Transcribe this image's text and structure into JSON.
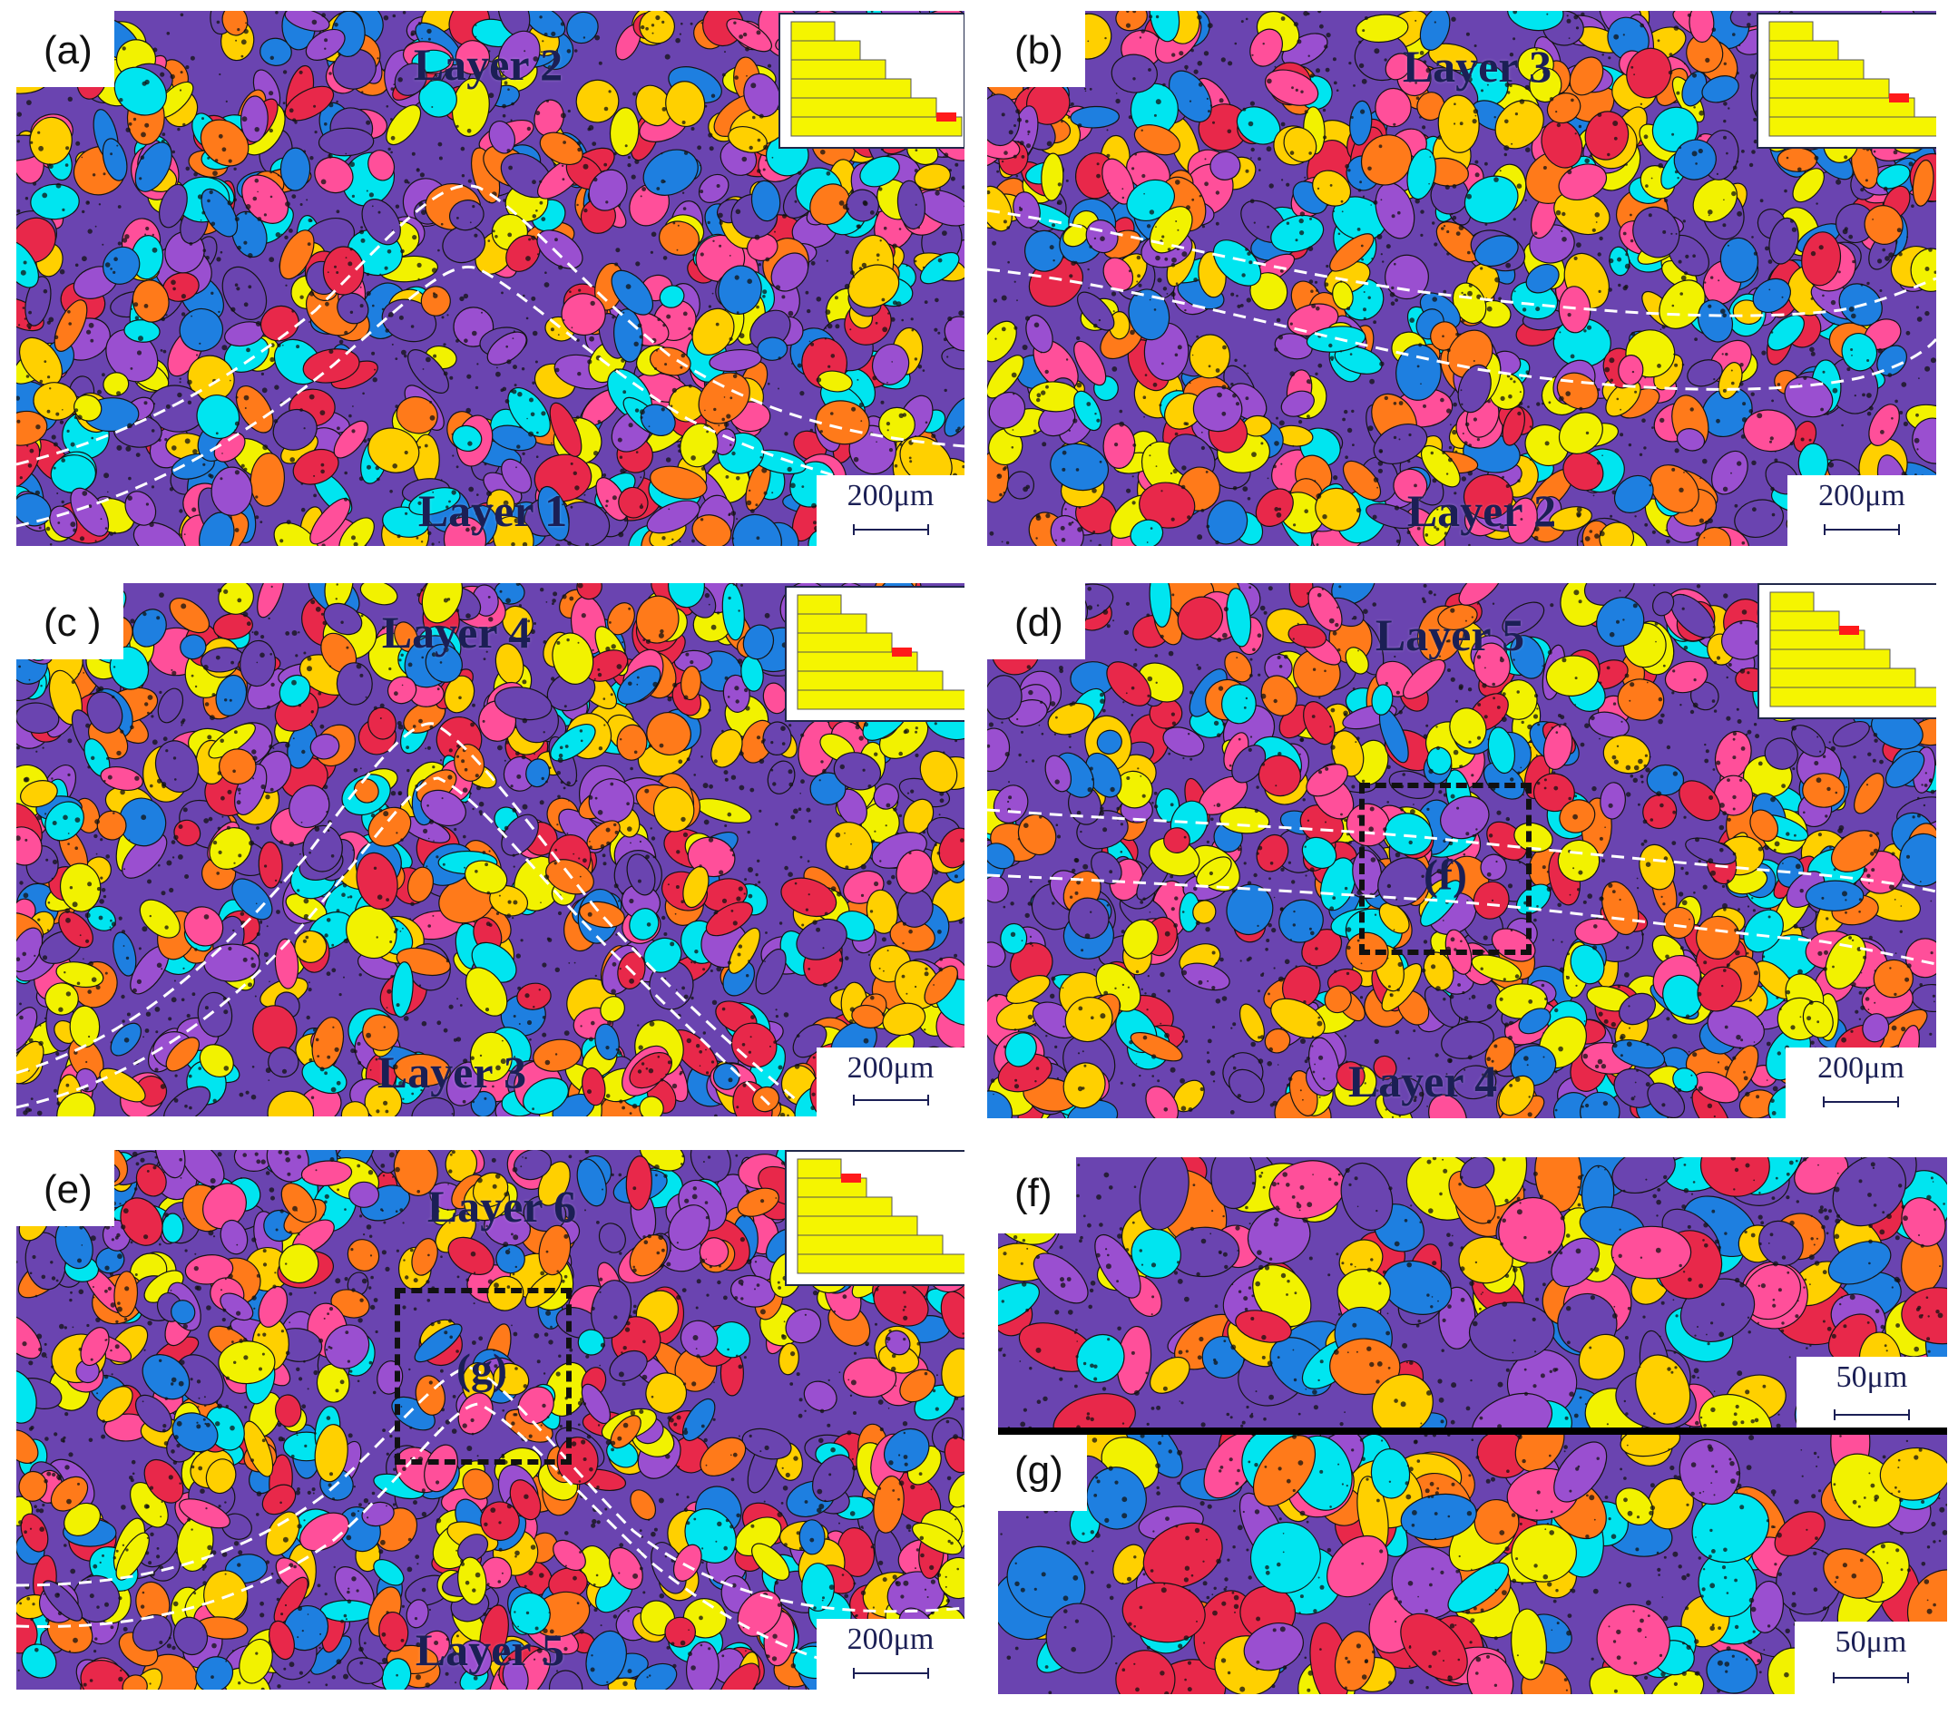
{
  "figure": {
    "palette": [
      "#00e5f0",
      "#1e7fe0",
      "#6a44b0",
      "#e8284a",
      "#ff7a1a",
      "#ffd000",
      "#9a4fd0",
      "#ff4f9a",
      "#f2f200"
    ],
    "boundary_color": "#ffffff",
    "roi_color": "#111111",
    "inset_colors": {
      "steps": "#f5f500",
      "marker": "#ff1a1a",
      "frame": "#20284a"
    }
  },
  "panels": [
    {
      "tag": "(a)",
      "layer_top": "Layer 2",
      "layer_bottom": "Layer 1",
      "scale": "200μm",
      "inset_step": 1
    },
    {
      "tag": "(b)",
      "layer_top": "Layer 3",
      "layer_bottom": "Layer 2",
      "scale": "200μm",
      "inset_step": 2
    },
    {
      "tag": "(c )",
      "layer_top": "Layer 4",
      "layer_bottom": "Layer 3",
      "scale": "200μm",
      "inset_step": 3
    },
    {
      "tag": "(d)",
      "layer_top": "Layer 5",
      "layer_bottom": "Layer 4",
      "scale": "200μm",
      "roi": "(f)",
      "inset_step": 4
    },
    {
      "tag": "(e)",
      "layer_top": "Layer 6",
      "layer_bottom": "Layer 5",
      "scale": "200μm",
      "roi": "(g)",
      "inset_step": 5
    },
    {
      "tag": "(f)",
      "scale": "50μm"
    },
    {
      "tag": "(g)",
      "scale": "50μm"
    }
  ]
}
